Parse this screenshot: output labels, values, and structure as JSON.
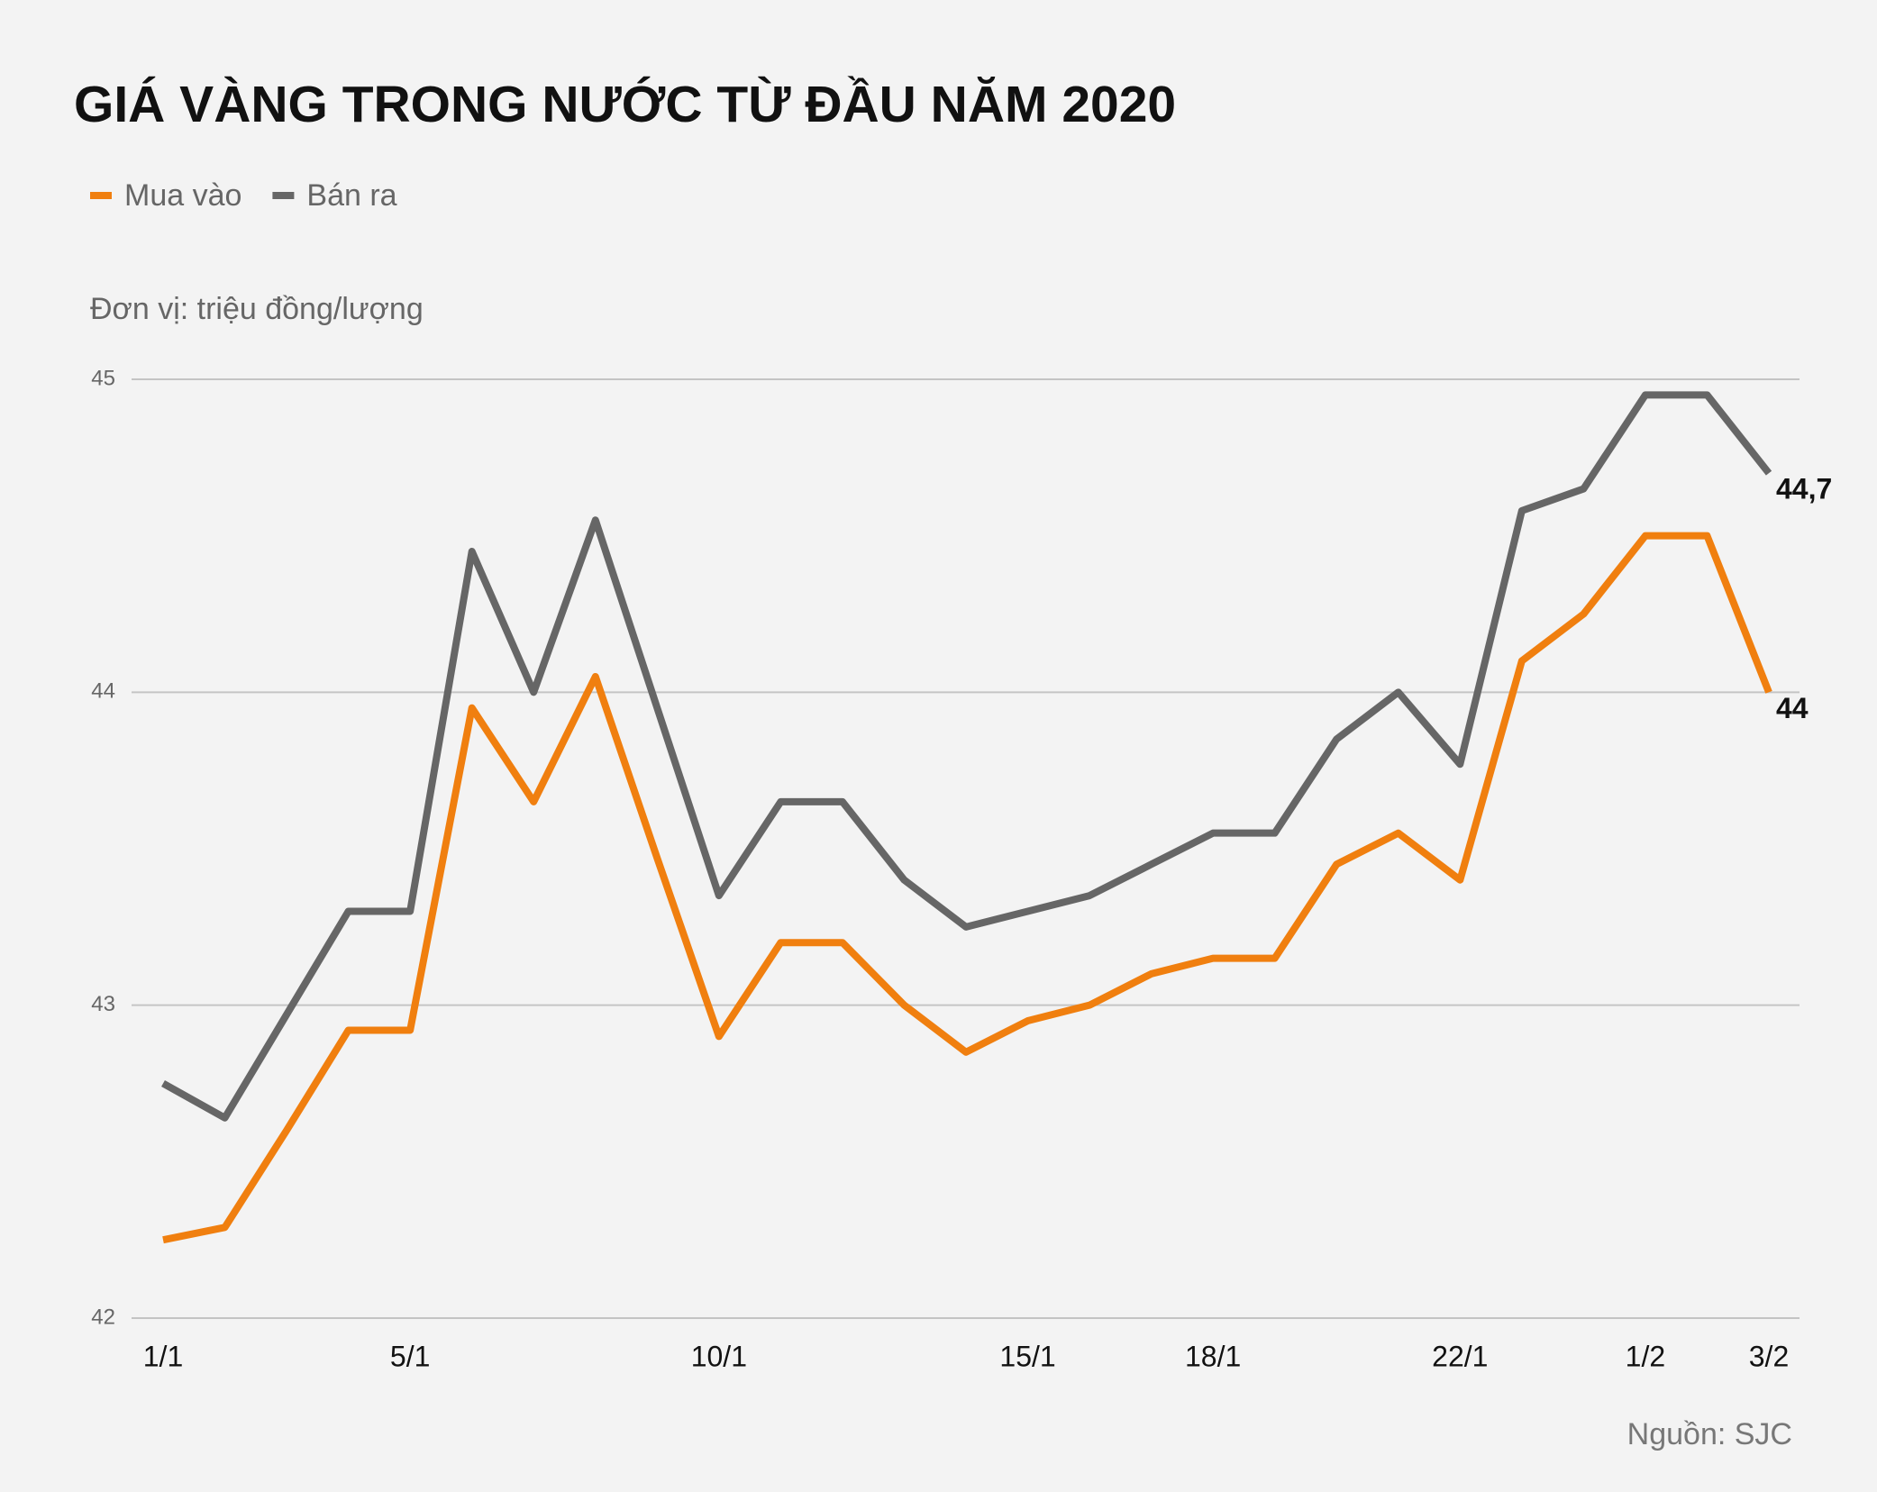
{
  "chart_data": {
    "type": "line",
    "title": "GIÁ VÀNG TRONG NƯỚC TỪ ĐẦU NĂM 2020",
    "y_label": "Đơn vị: triệu đồng/lượng",
    "source": "Nguồn: SJC",
    "categories": [
      "1/1",
      null,
      null,
      null,
      "5/1",
      null,
      null,
      null,
      null,
      "10/1",
      null,
      null,
      null,
      null,
      "15/1",
      null,
      null,
      "18/1",
      null,
      null,
      null,
      "22/1",
      null,
      null,
      "1/2",
      null,
      "3/2"
    ],
    "series": [
      {
        "name": "Mua vào",
        "color": "#f07f0f",
        "values": [
          42.25,
          42.29,
          42.6,
          42.92,
          42.92,
          43.95,
          43.65,
          44.05,
          43.47,
          42.9,
          43.2,
          43.2,
          43.0,
          42.85,
          42.95,
          43.0,
          43.1,
          43.15,
          43.15,
          43.45,
          43.55,
          43.4,
          44.1,
          44.25,
          44.5,
          44.5,
          44.0
        ],
        "value_labels": [
          null,
          null,
          null,
          null,
          null,
          null,
          null,
          null,
          null,
          null,
          null,
          null,
          null,
          null,
          null,
          null,
          null,
          null,
          null,
          null,
          null,
          null,
          null,
          null,
          null,
          null,
          "44"
        ]
      },
      {
        "name": "Bán ra",
        "color": "#666666",
        "values": [
          42.75,
          42.64,
          42.97,
          43.3,
          43.3,
          44.45,
          44.0,
          44.55,
          43.95,
          43.35,
          43.65,
          43.65,
          43.4,
          43.25,
          43.3,
          43.35,
          43.45,
          43.55,
          43.55,
          43.85,
          44.0,
          43.77,
          44.58,
          44.65,
          44.95,
          44.95,
          44.7
        ],
        "value_labels": [
          null,
          null,
          null,
          null,
          null,
          null,
          null,
          null,
          null,
          null,
          null,
          null,
          null,
          null,
          null,
          null,
          null,
          null,
          null,
          null,
          null,
          null,
          null,
          null,
          null,
          null,
          "44,7"
        ]
      }
    ],
    "ylim": [
      42,
      45
    ],
    "yticks": [
      42,
      43,
      44,
      45
    ],
    "grid": true
  }
}
